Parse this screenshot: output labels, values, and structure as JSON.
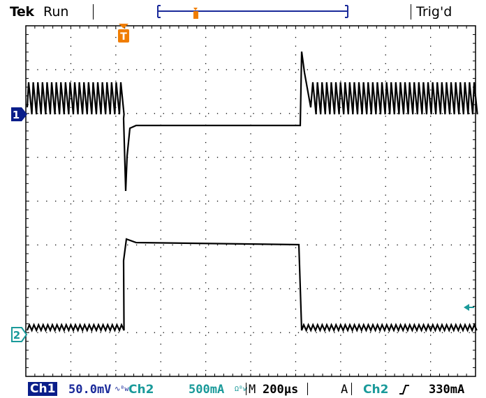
{
  "status": {
    "brand": "Tek",
    "run_state": "Run",
    "trigger_state": "Trig'd"
  },
  "markers": {
    "trigger": "T",
    "ch1": "1",
    "ch2": "2"
  },
  "readout": {
    "ch1_label": "Ch1",
    "ch1_scale": "50.0mV",
    "ch1_coupling_icon": "∿ᴮw",
    "ch2_label": "Ch2",
    "ch2_scale": "500mA",
    "ch2_coupling_icon": "Ωᴮw",
    "timebase_label": "M",
    "timebase": "200µs",
    "trigger_mode": "A",
    "trigger_source": "Ch2",
    "trigger_slope_icon": "rising-edge",
    "trigger_level": "330mA"
  },
  "colors": {
    "ch1": "#1a2a9a",
    "ch2": "#1a9a9a",
    "trigger": "#f07d00",
    "trace": "#000000",
    "graticule": "#000000"
  }
}
